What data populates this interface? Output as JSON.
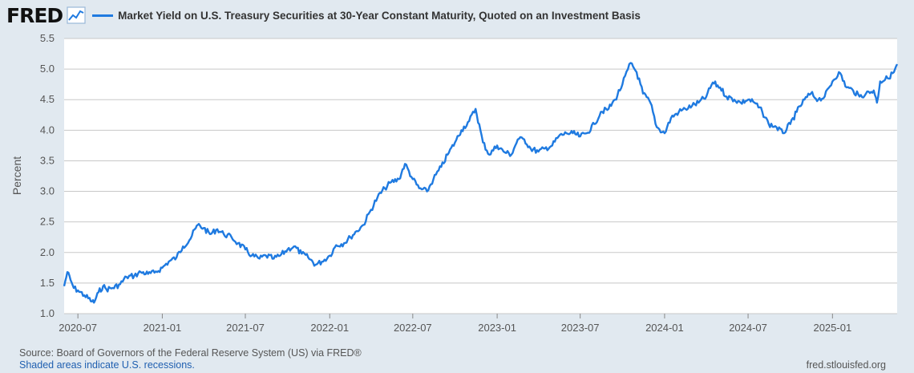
{
  "header": {
    "logo": "FRED",
    "logo_icon": "chart-line-icon",
    "series_title": "Market Yield on U.S. Treasury Securities at 30-Year Constant Maturity, Quoted on an Investment Basis"
  },
  "footer": {
    "source": "Source: Board of Governors of the Federal Reserve System (US) via FRED®",
    "recession_note": "Shaded areas indicate U.S. recessions.",
    "url": "fred.stlouisfed.org"
  },
  "colors": {
    "line": "#1f7ae0",
    "plot_bg": "#ffffff",
    "page_bg": "#e1e9f0",
    "grid": "#c8c8c8"
  },
  "chart_data": {
    "type": "line",
    "title": "",
    "xlabel": "",
    "ylabel": "Percent",
    "ylim": [
      1.0,
      5.5
    ],
    "yticks": [
      "1.0",
      "1.5",
      "2.0",
      "2.5",
      "3.0",
      "3.5",
      "4.0",
      "4.5",
      "5.0",
      "5.5"
    ],
    "xlim": [
      "2020-06-01",
      "2025-05-22"
    ],
    "xticks": [
      "2020-07",
      "2021-01",
      "2021-07",
      "2022-01",
      "2022-07",
      "2023-01",
      "2023-07",
      "2024-01",
      "2024-07",
      "2025-01"
    ],
    "grid": true,
    "series": [
      {
        "name": "",
        "x": [
          "2020-06-01",
          "2020-06-08",
          "2020-06-15",
          "2020-06-22",
          "2020-07-01",
          "2020-07-15",
          "2020-08-01",
          "2020-08-05",
          "2020-08-15",
          "2020-08-25",
          "2020-09-01",
          "2020-09-15",
          "2020-10-01",
          "2020-10-15",
          "2020-11-01",
          "2020-11-15",
          "2020-12-01",
          "2020-12-15",
          "2021-01-01",
          "2021-01-15",
          "2021-02-01",
          "2021-02-15",
          "2021-03-01",
          "2021-03-15",
          "2021-03-19",
          "2021-04-01",
          "2021-04-15",
          "2021-05-01",
          "2021-05-15",
          "2021-06-01",
          "2021-06-15",
          "2021-07-01",
          "2021-07-15",
          "2021-08-01",
          "2021-08-15",
          "2021-09-01",
          "2021-09-15",
          "2021-10-01",
          "2021-10-15",
          "2021-11-01",
          "2021-11-15",
          "2021-12-01",
          "2021-12-15",
          "2022-01-01",
          "2022-01-15",
          "2022-02-01",
          "2022-02-15",
          "2022-03-01",
          "2022-03-15",
          "2022-04-01",
          "2022-04-15",
          "2022-05-01",
          "2022-05-15",
          "2022-06-01",
          "2022-06-14",
          "2022-07-01",
          "2022-07-15",
          "2022-08-01",
          "2022-08-15",
          "2022-09-01",
          "2022-09-15",
          "2022-10-01",
          "2022-10-15",
          "2022-11-01",
          "2022-11-15",
          "2022-12-01",
          "2022-12-15",
          "2023-01-01",
          "2023-01-15",
          "2023-02-01",
          "2023-02-15",
          "2023-03-01",
          "2023-03-15",
          "2023-04-01",
          "2023-04-15",
          "2023-05-01",
          "2023-05-15",
          "2023-06-01",
          "2023-06-15",
          "2023-07-01",
          "2023-07-15",
          "2023-08-01",
          "2023-08-15",
          "2023-09-01",
          "2023-09-15",
          "2023-10-01",
          "2023-10-19",
          "2023-11-01",
          "2023-11-15",
          "2023-12-01",
          "2023-12-15",
          "2024-01-01",
          "2024-01-15",
          "2024-02-01",
          "2024-02-15",
          "2024-03-01",
          "2024-03-15",
          "2024-04-01",
          "2024-04-15",
          "2024-05-01",
          "2024-05-15",
          "2024-06-01",
          "2024-06-15",
          "2024-07-01",
          "2024-07-15",
          "2024-08-01",
          "2024-08-15",
          "2024-09-01",
          "2024-09-15",
          "2024-10-01",
          "2024-10-15",
          "2024-11-01",
          "2024-11-15",
          "2024-12-01",
          "2024-12-15",
          "2025-01-01",
          "2025-01-15",
          "2025-02-01",
          "2025-02-15",
          "2025-03-01",
          "2025-03-15",
          "2025-04-01",
          "2025-04-08",
          "2025-04-15",
          "2025-05-01",
          "2025-05-15",
          "2025-05-22"
        ],
        "y": [
          1.45,
          1.68,
          1.55,
          1.42,
          1.38,
          1.3,
          1.2,
          1.18,
          1.35,
          1.45,
          1.4,
          1.42,
          1.48,
          1.6,
          1.62,
          1.68,
          1.65,
          1.67,
          1.75,
          1.85,
          1.92,
          2.1,
          2.2,
          2.4,
          2.45,
          2.4,
          2.3,
          2.38,
          2.3,
          2.25,
          2.15,
          2.05,
          1.95,
          1.9,
          1.95,
          1.9,
          1.95,
          2.05,
          2.1,
          1.98,
          1.92,
          1.8,
          1.85,
          1.95,
          2.12,
          2.15,
          2.25,
          2.35,
          2.45,
          2.7,
          2.9,
          3.05,
          3.15,
          3.2,
          3.45,
          3.2,
          3.05,
          3.0,
          3.2,
          3.4,
          3.6,
          3.8,
          4.0,
          4.15,
          4.35,
          3.8,
          3.6,
          3.75,
          3.65,
          3.6,
          3.85,
          3.85,
          3.7,
          3.65,
          3.7,
          3.75,
          3.9,
          3.95,
          3.95,
          3.9,
          3.95,
          4.1,
          4.3,
          4.35,
          4.5,
          4.75,
          5.1,
          4.95,
          4.6,
          4.45,
          4.05,
          3.95,
          4.2,
          4.3,
          4.35,
          4.4,
          4.45,
          4.55,
          4.78,
          4.7,
          4.55,
          4.5,
          4.45,
          4.5,
          4.45,
          4.3,
          4.1,
          4.05,
          3.95,
          4.1,
          4.3,
          4.5,
          4.6,
          4.5,
          4.55,
          4.8,
          4.95,
          4.7,
          4.65,
          4.55,
          4.6,
          4.65,
          4.45,
          4.8,
          4.85,
          4.95,
          5.08
        ]
      }
    ]
  }
}
